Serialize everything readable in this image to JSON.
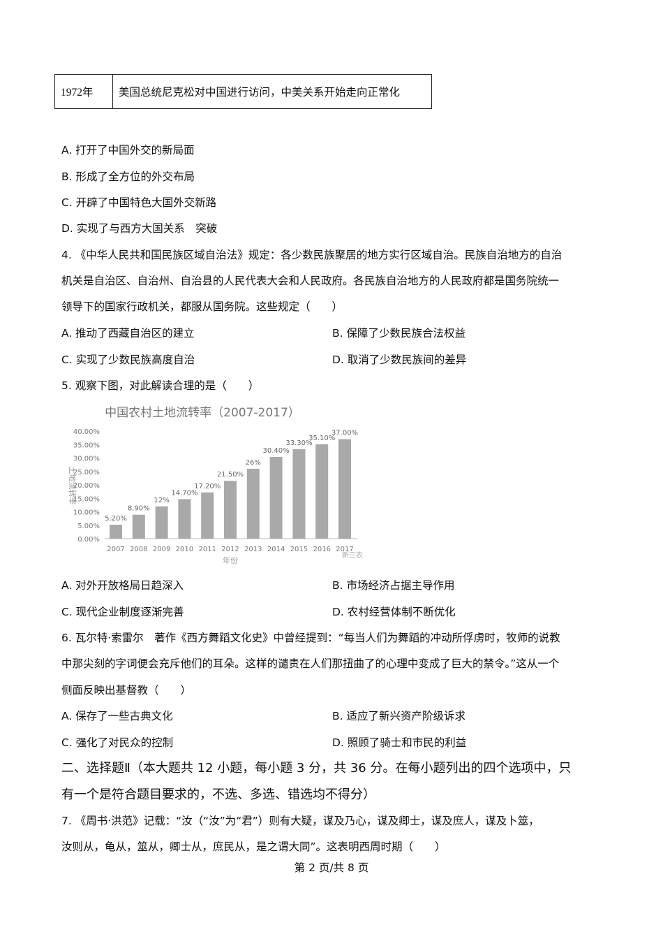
{
  "table": {
    "year": "1972年",
    "event": "美国总统尼克松对中国进行访问，中美关系开始走向正常化"
  },
  "q3_options": [
    "A. 打开了中国外交的新局面",
    "B. 形成了全方位的外交布局",
    "C. 开辟了中国特色大国外交新路",
    "D. 实现了与西方大国关系　突破"
  ],
  "q4": {
    "lines": [
      "4. 《中华人民共和国民族区域自治法》规定：各少数民族聚居的地方实行区域自治。民族自治地方的自治",
      "机关是自治区、自治州、自治县的人民代表大会和人民政府。各民族自治地方的人民政府都是国务院统一",
      "领导下的国家行政机关，都服从国务院。这些规定（　　）"
    ],
    "options": [
      "A. 推动了西藏自治区的建立",
      "B. 保障了少数民族合法权益",
      "C. 实现了少数民族高度自治",
      "D. 取消了少数民族间的差异"
    ]
  },
  "q5": {
    "lines": [
      "5. 观察下图，对此解读合理的是（　　）"
    ],
    "options": [
      "A. 对外开放格局日趋深入",
      "B. 市场经济占据主导作用",
      "C. 现代企业制度逐渐完善",
      "D. 农村经营体制不断优化"
    ]
  },
  "chart_data": {
    "type": "bar",
    "title": "中国农村土地流转率（2007-2017）",
    "xlabel": "年份",
    "ylabel": "土地流转率",
    "categories": [
      "2007",
      "2008",
      "2009",
      "2010",
      "2011",
      "2012",
      "2013",
      "2014",
      "2015",
      "2016",
      "2017"
    ],
    "values": [
      5.2,
      8.9,
      12,
      14.7,
      17.2,
      21.5,
      26,
      30.4,
      33.3,
      35.1,
      37.0
    ],
    "data_labels": [
      "5.20%",
      "8.90%",
      "12%",
      "14.70%",
      "17.20%",
      "21.50%",
      "26%",
      "30.40%",
      "33.30%",
      "35.10%",
      "37.00%"
    ],
    "yticks": [
      "0.00%",
      "5.00%",
      "10.00%",
      "15.00%",
      "20.00%",
      "25.00%",
      "30.00%",
      "35.00%",
      "40.00%"
    ],
    "ylim": [
      0,
      40
    ],
    "grid": false,
    "bar_color": "#a9a9a9",
    "watermark": "新三农"
  },
  "q6": {
    "lines": [
      "6. 瓦尔特·索雷尔　著作《西方舞蹈文化史》中曾经提到：“每当人们为舞蹈的冲动所俘虏时，牧师的说教",
      "中那尖刻的字词便会充斥他们的耳朵。这样的谴责在人们那扭曲了的心理中变成了巨大的禁令。”这从一个",
      "侧面反映出基督教（　　）"
    ],
    "options": [
      "A. 保存了一些古典文化",
      "B. 适应了新兴资产阶级诉求",
      "C. 强化了对民众的控制",
      "D. 照顾了骑士和市民的利益"
    ]
  },
  "section": [
    "二、选择题Ⅱ（本大题共 12 小题，每小题 3 分，共 36 分。在每小题列出的四个选项中，只",
    "有一个是符合题目要求的，不选、多选、错选均不得分）"
  ],
  "q7": {
    "lines": [
      "7. 《周书·洪范》记载：“汝（“汝”为“君”）则有大疑，谋及乃心，谋及卿士，谋及庶人，谋及卜筮，",
      "汝则从，龟从，筮从，卿士从，庶民从，是之谓大同”。这表明西周时期（　　）"
    ]
  },
  "footer": "第 2 页/共 8 页"
}
